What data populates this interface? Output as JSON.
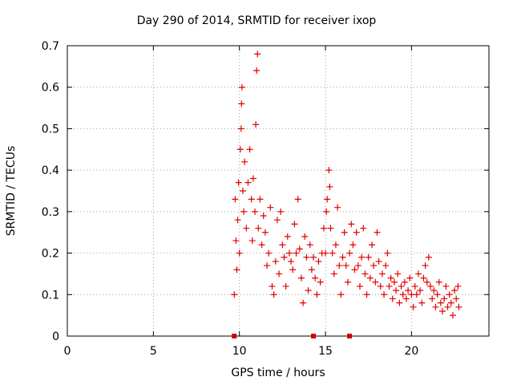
{
  "chart_data": {
    "type": "scatter",
    "title": "Day 290 of 2014, SRMTID for receiver ixop",
    "xlabel": "GPS time / hours",
    "ylabel": "SRMTID / TECUs",
    "xlim": [
      0,
      24.5
    ],
    "ylim": [
      0,
      0.7
    ],
    "xticks": [
      0,
      5,
      10,
      15,
      20
    ],
    "xtick_labels": [
      "0",
      "5",
      "10",
      "15",
      "20"
    ],
    "yticks": [
      0,
      0.1,
      0.2,
      0.3,
      0.4,
      0.5,
      0.6,
      0.7
    ],
    "ytick_labels": [
      "0",
      "0.1",
      "0.2",
      "0.3",
      "0.4",
      "0.5",
      "0.6",
      "0.7"
    ],
    "grid": true,
    "marker": "+",
    "color": "#e00000",
    "x_axis_markers": [
      9.7,
      14.3,
      16.4
    ],
    "series": [
      {
        "name": "SRMTID",
        "points": [
          [
            9.7,
            0.1
          ],
          [
            9.75,
            0.33
          ],
          [
            9.8,
            0.23
          ],
          [
            9.85,
            0.16
          ],
          [
            9.9,
            0.28
          ],
          [
            9.95,
            0.37
          ],
          [
            10.0,
            0.2
          ],
          [
            10.05,
            0.45
          ],
          [
            10.1,
            0.5
          ],
          [
            10.12,
            0.56
          ],
          [
            10.15,
            0.6
          ],
          [
            10.2,
            0.35
          ],
          [
            10.25,
            0.3
          ],
          [
            10.3,
            0.42
          ],
          [
            10.4,
            0.26
          ],
          [
            10.5,
            0.37
          ],
          [
            10.6,
            0.45
          ],
          [
            10.7,
            0.33
          ],
          [
            10.75,
            0.23
          ],
          [
            10.8,
            0.38
          ],
          [
            10.9,
            0.3
          ],
          [
            10.95,
            0.51
          ],
          [
            11.0,
            0.64
          ],
          [
            11.05,
            0.68
          ],
          [
            11.1,
            0.26
          ],
          [
            11.2,
            0.33
          ],
          [
            11.3,
            0.22
          ],
          [
            11.4,
            0.29
          ],
          [
            11.5,
            0.25
          ],
          [
            11.6,
            0.17
          ],
          [
            11.7,
            0.2
          ],
          [
            11.8,
            0.31
          ],
          [
            11.9,
            0.12
          ],
          [
            12.0,
            0.1
          ],
          [
            12.1,
            0.18
          ],
          [
            12.2,
            0.28
          ],
          [
            12.3,
            0.15
          ],
          [
            12.4,
            0.3
          ],
          [
            12.5,
            0.22
          ],
          [
            12.6,
            0.19
          ],
          [
            12.7,
            0.12
          ],
          [
            12.8,
            0.24
          ],
          [
            12.9,
            0.2
          ],
          [
            13.0,
            0.18
          ],
          [
            13.1,
            0.16
          ],
          [
            13.2,
            0.27
          ],
          [
            13.3,
            0.2
          ],
          [
            13.4,
            0.33
          ],
          [
            13.5,
            0.21
          ],
          [
            13.6,
            0.14
          ],
          [
            13.7,
            0.08
          ],
          [
            13.8,
            0.24
          ],
          [
            13.9,
            0.19
          ],
          [
            14.0,
            0.11
          ],
          [
            14.1,
            0.22
          ],
          [
            14.2,
            0.16
          ],
          [
            14.3,
            0.19
          ],
          [
            14.4,
            0.14
          ],
          [
            14.5,
            0.1
          ],
          [
            14.6,
            0.18
          ],
          [
            14.7,
            0.13
          ],
          [
            14.8,
            0.2
          ],
          [
            14.9,
            0.26
          ],
          [
            15.0,
            0.2
          ],
          [
            15.05,
            0.3
          ],
          [
            15.1,
            0.33
          ],
          [
            15.2,
            0.4
          ],
          [
            15.25,
            0.36
          ],
          [
            15.3,
            0.26
          ],
          [
            15.4,
            0.2
          ],
          [
            15.5,
            0.15
          ],
          [
            15.6,
            0.22
          ],
          [
            15.7,
            0.31
          ],
          [
            15.8,
            0.17
          ],
          [
            15.9,
            0.1
          ],
          [
            16.0,
            0.19
          ],
          [
            16.1,
            0.25
          ],
          [
            16.2,
            0.17
          ],
          [
            16.3,
            0.13
          ],
          [
            16.4,
            0.2
          ],
          [
            16.5,
            0.27
          ],
          [
            16.6,
            0.22
          ],
          [
            16.7,
            0.16
          ],
          [
            16.8,
            0.25
          ],
          [
            16.9,
            0.17
          ],
          [
            17.0,
            0.12
          ],
          [
            17.1,
            0.19
          ],
          [
            17.2,
            0.26
          ],
          [
            17.3,
            0.15
          ],
          [
            17.4,
            0.1
          ],
          [
            17.5,
            0.19
          ],
          [
            17.6,
            0.14
          ],
          [
            17.7,
            0.22
          ],
          [
            17.8,
            0.17
          ],
          [
            17.9,
            0.13
          ],
          [
            18.0,
            0.25
          ],
          [
            18.1,
            0.18
          ],
          [
            18.2,
            0.12
          ],
          [
            18.3,
            0.15
          ],
          [
            18.4,
            0.1
          ],
          [
            18.5,
            0.17
          ],
          [
            18.6,
            0.2
          ],
          [
            18.7,
            0.12
          ],
          [
            18.8,
            0.14
          ],
          [
            18.9,
            0.09
          ],
          [
            19.0,
            0.13
          ],
          [
            19.1,
            0.11
          ],
          [
            19.2,
            0.15
          ],
          [
            19.3,
            0.08
          ],
          [
            19.4,
            0.12
          ],
          [
            19.5,
            0.1
          ],
          [
            19.6,
            0.13
          ],
          [
            19.7,
            0.09
          ],
          [
            19.8,
            0.11
          ],
          [
            19.9,
            0.14
          ],
          [
            20.0,
            0.1
          ],
          [
            20.1,
            0.07
          ],
          [
            20.2,
            0.12
          ],
          [
            20.3,
            0.1
          ],
          [
            20.4,
            0.15
          ],
          [
            20.5,
            0.11
          ],
          [
            20.6,
            0.08
          ],
          [
            20.7,
            0.14
          ],
          [
            20.8,
            0.17
          ],
          [
            20.9,
            0.13
          ],
          [
            21.0,
            0.19
          ],
          [
            21.1,
            0.12
          ],
          [
            21.2,
            0.09
          ],
          [
            21.3,
            0.11
          ],
          [
            21.4,
            0.07
          ],
          [
            21.5,
            0.1
          ],
          [
            21.6,
            0.13
          ],
          [
            21.7,
            0.08
          ],
          [
            21.8,
            0.06
          ],
          [
            21.9,
            0.09
          ],
          [
            22.0,
            0.12
          ],
          [
            22.1,
            0.07
          ],
          [
            22.2,
            0.1
          ],
          [
            22.3,
            0.08
          ],
          [
            22.4,
            0.05
          ],
          [
            22.5,
            0.11
          ],
          [
            22.6,
            0.09
          ],
          [
            22.7,
            0.12
          ],
          [
            22.75,
            0.07
          ]
        ]
      }
    ]
  }
}
